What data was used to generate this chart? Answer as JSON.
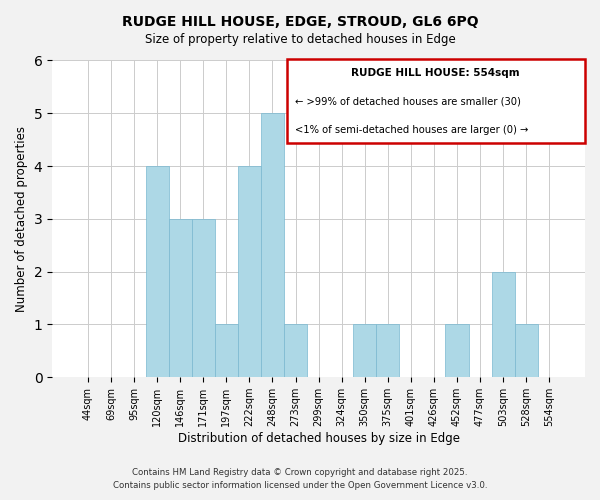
{
  "title": "RUDGE HILL HOUSE, EDGE, STROUD, GL6 6PQ",
  "subtitle": "Size of property relative to detached houses in Edge",
  "xlabel": "Distribution of detached houses by size in Edge",
  "ylabel": "Number of detached properties",
  "bar_labels": [
    "44sqm",
    "69sqm",
    "95sqm",
    "120sqm",
    "146sqm",
    "171sqm",
    "197sqm",
    "222sqm",
    "248sqm",
    "273sqm",
    "299sqm",
    "324sqm",
    "350sqm",
    "375sqm",
    "401sqm",
    "426sqm",
    "452sqm",
    "477sqm",
    "503sqm",
    "528sqm",
    "554sqm"
  ],
  "bar_values": [
    0,
    0,
    0,
    4,
    3,
    3,
    1,
    4,
    5,
    1,
    0,
    0,
    1,
    1,
    0,
    0,
    1,
    0,
    2,
    1,
    0
  ],
  "bar_color": "#add8e6",
  "bar_edge_color": "#7ab8d0",
  "highlight_box_color": "#cc0000",
  "ylim": [
    0,
    6
  ],
  "yticks": [
    0,
    1,
    2,
    3,
    4,
    5,
    6
  ],
  "legend_title": "RUDGE HILL HOUSE: 554sqm",
  "legend_line1": "← >99% of detached houses are smaller (30)",
  "legend_line2": "<1% of semi-detached houses are larger (0) →",
  "footer1": "Contains HM Land Registry data © Crown copyright and database right 2025.",
  "footer2": "Contains public sector information licensed under the Open Government Licence v3.0.",
  "bg_color": "#f2f2f2",
  "plot_bg_color": "#ffffff",
  "grid_color": "#cccccc"
}
